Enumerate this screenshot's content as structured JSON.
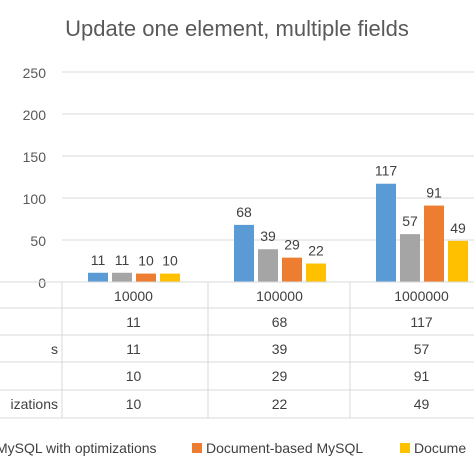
{
  "chart_data": {
    "type": "bar",
    "title": "Update one element, multiple fields",
    "categories": [
      "10000",
      "100000",
      "1000000"
    ],
    "ylim": [
      0,
      250
    ],
    "yticks": [
      0,
      50,
      100,
      150,
      200,
      250
    ],
    "grid": true,
    "legend_position": "bottom",
    "data_table": true,
    "series": [
      {
        "name": "MySQL with optimizations",
        "table_label": "",
        "color": "#5B9BD5",
        "values": [
          11,
          68,
          117
        ]
      },
      {
        "name": "",
        "table_label": "s",
        "color": "#A5A5A5",
        "values": [
          11,
          39,
          57
        ]
      },
      {
        "name": "Document-based MySQL",
        "table_label": "",
        "color": "#ED7D31",
        "values": [
          10,
          29,
          91
        ]
      },
      {
        "name": "Docume",
        "table_label": "izations",
        "color": "#FFC000",
        "values": [
          10,
          22,
          49
        ]
      }
    ],
    "legend_items": [
      {
        "label": "MySQL with optimizations",
        "series_index": -1,
        "text_only": true
      },
      {
        "label": "Document-based MySQL",
        "series_index": 2
      },
      {
        "label": "Docume",
        "series_index": 3
      }
    ]
  }
}
